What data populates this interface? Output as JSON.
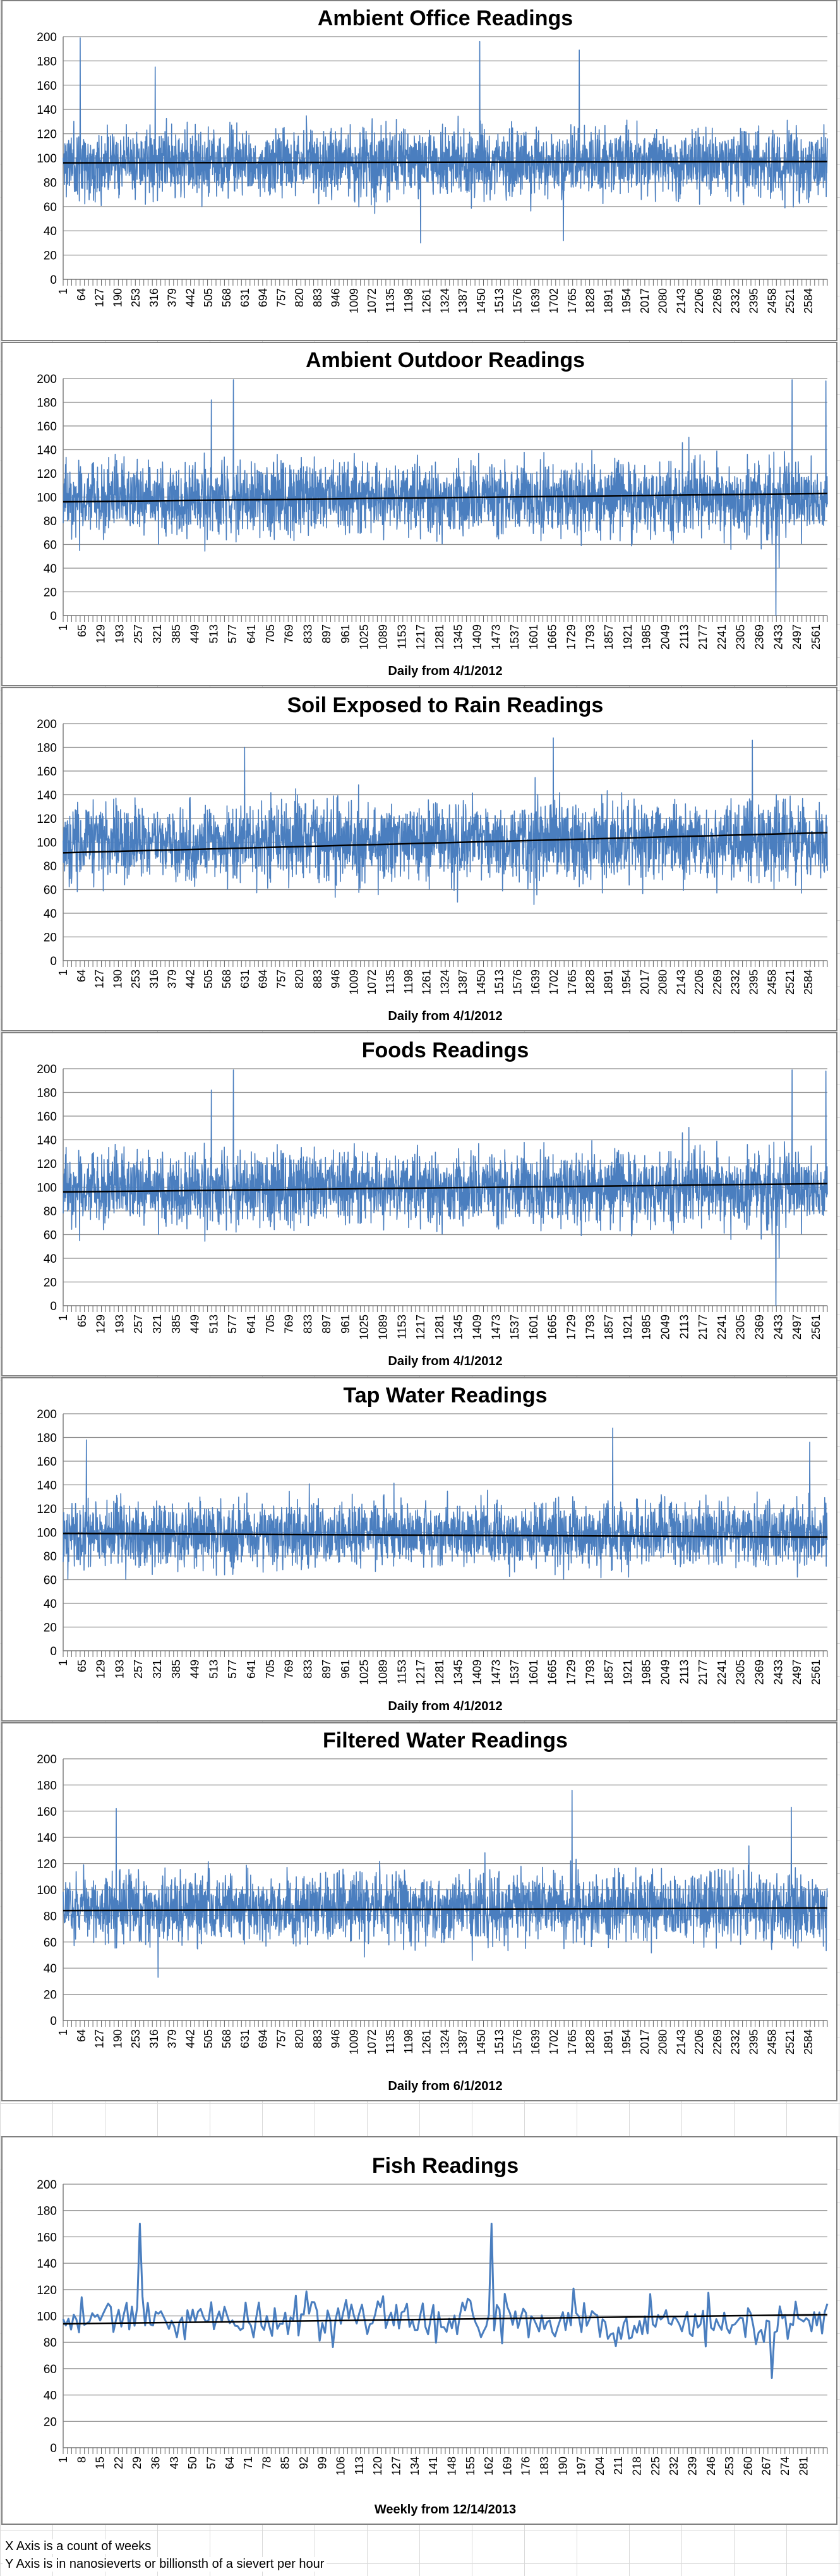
{
  "colors": {
    "series": "#4a7ebf",
    "trend": "#000000",
    "grid": "#8c8c8c",
    "axis": "#7f7f7f",
    "sheet_grid": "#d9d9d9"
  },
  "charts": [
    {
      "title": "Ambient Office Readings",
      "xlabel": "",
      "chart_data": {
        "type": "line",
        "title": "Ambient Office Readings",
        "xlabel": "",
        "ylabel": "",
        "ylim": [
          0,
          200
        ],
        "yticks": [
          0,
          20,
          40,
          60,
          80,
          100,
          120,
          140,
          160,
          180,
          200
        ],
        "x_range": [
          1,
          2650
        ],
        "x_tick_start": 1,
        "x_tick_step": 63,
        "x_ticks": [
          1,
          64,
          127,
          190,
          253,
          316,
          379,
          442,
          505,
          568,
          631,
          694,
          757,
          820,
          883,
          946,
          1009,
          1072,
          1135,
          1198,
          1261,
          1324,
          1387,
          1450,
          1513,
          1576,
          1639,
          1702,
          1765,
          1828,
          1891,
          1954,
          2017,
          2080,
          2143,
          2206,
          2269,
          2332,
          2395,
          2458,
          2521,
          2584
        ],
        "n_points": 2650,
        "mean": 96,
        "spread": 26,
        "noise_seed": 11,
        "peaks": [
          [
            60,
            199
          ],
          [
            320,
            175
          ],
          [
            1445,
            196
          ],
          [
            1790,
            189
          ],
          [
            1240,
            30
          ],
          [
            1735,
            32
          ]
        ],
        "trend": [
          96,
          97
        ],
        "series": [
          {
            "values": "daily readings"
          }
        ]
      }
    },
    {
      "title": "Ambient Outdoor Readings",
      "xlabel": "Daily from 4/1/2012",
      "chart_data": {
        "type": "line",
        "title": "Ambient Outdoor Readings",
        "xlabel": "Daily from 4/1/2012",
        "ylabel": "",
        "ylim": [
          0,
          200
        ],
        "yticks": [
          0,
          20,
          40,
          60,
          80,
          100,
          120,
          140,
          160,
          180,
          200
        ],
        "x_range": [
          1,
          2600
        ],
        "x_tick_start": 1,
        "x_tick_step": 64,
        "x_ticks": [
          1,
          65,
          129,
          193,
          257,
          321,
          385,
          449,
          513,
          577,
          641,
          705,
          769,
          833,
          897,
          961,
          1025,
          1089,
          1153,
          1217,
          1281,
          1345,
          1409,
          1473,
          1537,
          1601,
          1665,
          1729,
          1793,
          1857,
          1921,
          1985,
          2049,
          2113,
          2177,
          2241,
          2305,
          2369,
          2433,
          2497,
          2561
        ],
        "n_points": 2600,
        "mean": 99,
        "spread": 28,
        "noise_seed": 23,
        "peaks": [
          [
            505,
            182
          ],
          [
            580,
            199
          ],
          [
            2480,
            199
          ],
          [
            2595,
            198
          ],
          [
            2425,
            0
          ]
        ],
        "trend": [
          96,
          103
        ],
        "series": [
          {
            "values": "daily readings"
          }
        ]
      }
    },
    {
      "title": "Soil Exposed to Rain Readings",
      "xlabel": "Daily from 4/1/2012",
      "chart_data": {
        "type": "line",
        "title": "Soil Exposed to Rain Readings",
        "xlabel": "Daily from 4/1/2012",
        "ylabel": "",
        "ylim": [
          0,
          200
        ],
        "yticks": [
          0,
          20,
          40,
          60,
          80,
          100,
          120,
          140,
          160,
          180,
          200
        ],
        "x_range": [
          1,
          2650
        ],
        "x_tick_start": 1,
        "x_tick_step": 63,
        "x_ticks": [
          1,
          64,
          127,
          190,
          253,
          316,
          379,
          442,
          505,
          568,
          631,
          694,
          757,
          820,
          883,
          946,
          1009,
          1072,
          1135,
          1198,
          1261,
          1324,
          1387,
          1450,
          1513,
          1576,
          1639,
          1702,
          1765,
          1828,
          1891,
          1954,
          2017,
          2080,
          2143,
          2206,
          2269,
          2332,
          2395,
          2458,
          2521,
          2584
        ],
        "n_points": 2650,
        "mean": 100,
        "spread": 30,
        "noise_seed": 37,
        "peaks": [
          [
            1700,
            188
          ],
          [
            2390,
            186
          ],
          [
            630,
            180
          ],
          [
            2560,
            57
          ]
        ],
        "trend": [
          91,
          108
        ],
        "series": [
          {
            "values": "daily readings"
          }
        ]
      }
    },
    {
      "title": "Foods Readings",
      "xlabel": "Daily from 4/1/2012",
      "chart_data": {
        "type": "line",
        "title": "Foods Readings",
        "xlabel": "Daily from 4/1/2012",
        "ylabel": "",
        "ylim": [
          0,
          200
        ],
        "yticks": [
          0,
          20,
          40,
          60,
          80,
          100,
          120,
          140,
          160,
          180,
          200
        ],
        "x_range": [
          1,
          2600
        ],
        "x_tick_start": 1,
        "x_tick_step": 64,
        "x_ticks": [
          1,
          65,
          129,
          193,
          257,
          321,
          385,
          449,
          513,
          577,
          641,
          705,
          769,
          833,
          897,
          961,
          1025,
          1089,
          1153,
          1217,
          1281,
          1345,
          1409,
          1473,
          1537,
          1601,
          1665,
          1729,
          1793,
          1857,
          1921,
          1985,
          2049,
          2113,
          2177,
          2241,
          2305,
          2369,
          2433,
          2497,
          2561
        ],
        "n_points": 2600,
        "mean": 99,
        "spread": 28,
        "noise_seed": 23,
        "peaks": [
          [
            505,
            182
          ],
          [
            580,
            199
          ],
          [
            2480,
            199
          ],
          [
            2595,
            198
          ],
          [
            2425,
            0
          ]
        ],
        "trend": [
          96,
          103
        ],
        "series": [
          {
            "values": "daily readings"
          }
        ]
      }
    },
    {
      "title": "Tap Water Readings",
      "xlabel": "Daily from 4/1/2012",
      "chart_data": {
        "type": "line",
        "title": "Tap Water Readings",
        "xlabel": "Daily from 4/1/2012",
        "ylabel": "",
        "ylim": [
          0,
          200
        ],
        "yticks": [
          0,
          20,
          40,
          60,
          80,
          100,
          120,
          140,
          160,
          180,
          200
        ],
        "x_range": [
          1,
          2600
        ],
        "x_tick_start": 1,
        "x_tick_step": 64,
        "x_ticks": [
          1,
          65,
          129,
          193,
          257,
          321,
          385,
          449,
          513,
          577,
          641,
          705,
          769,
          833,
          897,
          961,
          1025,
          1089,
          1153,
          1217,
          1281,
          1345,
          1409,
          1473,
          1537,
          1601,
          1665,
          1729,
          1793,
          1857,
          1921,
          1985,
          2049,
          2113,
          2177,
          2241,
          2305,
          2369,
          2433,
          2497,
          2561
        ],
        "n_points": 2600,
        "mean": 98,
        "spread": 25,
        "noise_seed": 51,
        "peaks": [
          [
            1870,
            188
          ],
          [
            2540,
            176
          ],
          [
            80,
            178
          ]
        ],
        "trend": [
          99,
          96
        ],
        "series": [
          {
            "values": "daily readings"
          }
        ]
      }
    },
    {
      "title": "Filtered Water Readings",
      "xlabel": "Daily from 6/1/2012",
      "chart_data": {
        "type": "line",
        "title": "Filtered Water Readings",
        "xlabel": "Daily from 6/1/2012",
        "ylabel": "",
        "ylim": [
          0,
          200
        ],
        "yticks": [
          0,
          20,
          40,
          60,
          80,
          100,
          120,
          140,
          160,
          180,
          200
        ],
        "x_range": [
          1,
          2650
        ],
        "x_tick_start": 1,
        "x_tick_step": 63,
        "x_ticks": [
          1,
          64,
          127,
          190,
          253,
          316,
          379,
          442,
          505,
          568,
          631,
          694,
          757,
          820,
          883,
          946,
          1009,
          1072,
          1135,
          1198,
          1261,
          1324,
          1387,
          1450,
          1513,
          1576,
          1639,
          1702,
          1765,
          1828,
          1891,
          1954,
          2017,
          2080,
          2143,
          2206,
          2269,
          2332,
          2395,
          2458,
          2521,
          2584
        ],
        "n_points": 2650,
        "mean": 86,
        "spread": 24,
        "noise_seed": 67,
        "peaks": [
          [
            1765,
            176
          ],
          [
            2525,
            163
          ],
          [
            185,
            162
          ],
          [
            330,
            33
          ]
        ],
        "trend": [
          84,
          86
        ],
        "series": [
          {
            "values": "daily readings"
          }
        ]
      }
    },
    {
      "title": "Fish Readings",
      "xlabel": "Weekly from 12/14/2013",
      "chart_data": {
        "type": "line",
        "title": "Fish Readings",
        "xlabel": "Weekly from 12/14/2013",
        "ylabel": "",
        "ylim": [
          0,
          200
        ],
        "yticks": [
          0,
          20,
          40,
          60,
          80,
          100,
          120,
          140,
          160,
          180,
          200
        ],
        "x_range": [
          1,
          290
        ],
        "x_tick_start": 1,
        "x_tick_step": 7,
        "x_ticks": [
          1,
          8,
          15,
          22,
          29,
          36,
          43,
          50,
          57,
          64,
          71,
          78,
          85,
          92,
          99,
          106,
          113,
          120,
          127,
          134,
          141,
          148,
          155,
          162,
          169,
          176,
          183,
          190,
          197,
          204,
          211,
          218,
          225,
          232,
          239,
          246,
          253,
          260,
          267,
          274,
          281
        ],
        "n_points": 290,
        "mean": 97,
        "spread": 16,
        "noise_seed": 83,
        "peaks": [
          [
            30,
            170
          ],
          [
            163,
            170
          ],
          [
            269,
            53
          ]
        ],
        "trend": [
          94,
          101
        ],
        "series": [
          {
            "values": "weekly readings"
          }
        ]
      }
    }
  ],
  "footnotes": [
    "X Axis is a count of weeks",
    "Y Axis is in nanosieverts or billionsth of a sievert per hour"
  ]
}
